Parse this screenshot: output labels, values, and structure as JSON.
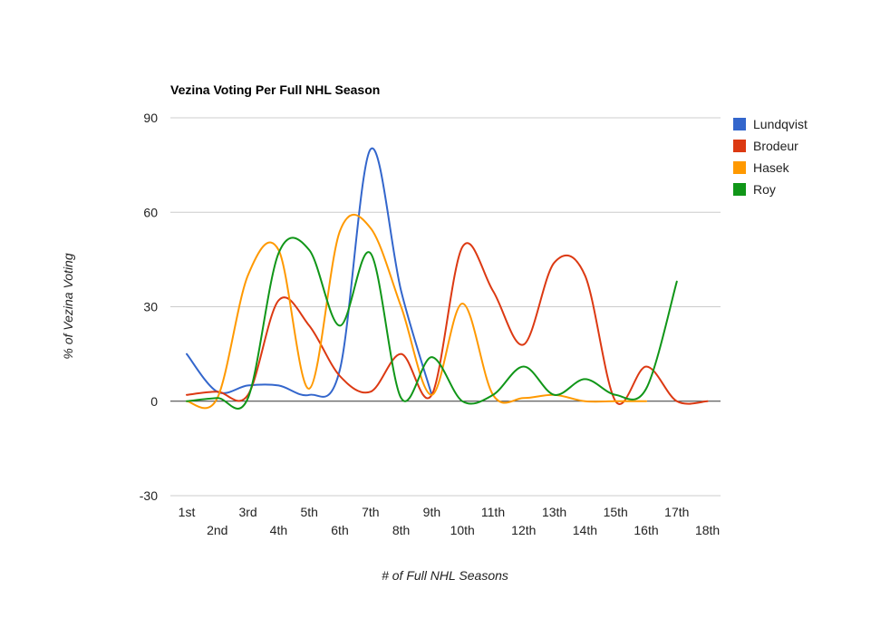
{
  "chart_data": {
    "type": "line",
    "title": "Vezina Voting Per Full NHL Season",
    "xlabel": "# of Full NHL Seasons",
    "ylabel": "% of Vezina Voting",
    "ylim": [
      -30,
      90
    ],
    "yticks": [
      90,
      60,
      30,
      0,
      -30
    ],
    "grid": true,
    "legend_position": "right",
    "categories": [
      "1st",
      "2nd",
      "3rd",
      "4th",
      "5th",
      "6th",
      "7th",
      "8th",
      "9th",
      "10th",
      "11th",
      "12th",
      "13th",
      "14th",
      "15th",
      "16th",
      "17th",
      "18th"
    ],
    "series": [
      {
        "name": "Lundqvist",
        "color": "#3366cc",
        "values": [
          15,
          3,
          5,
          5,
          2,
          10,
          80,
          35,
          2,
          null,
          null,
          null,
          null,
          null,
          null,
          null,
          null,
          null
        ]
      },
      {
        "name": "Brodeur",
        "color": "#dc3912",
        "values": [
          2,
          3,
          2,
          32,
          24,
          8,
          3,
          15,
          2,
          49,
          35,
          18,
          44,
          40,
          0,
          11,
          0,
          0
        ]
      },
      {
        "name": "Hasek",
        "color": "#ff9900",
        "values": [
          0,
          1,
          40,
          48,
          4,
          54,
          55,
          30,
          2,
          31,
          2,
          1,
          2,
          0,
          0,
          0,
          null,
          null
        ]
      },
      {
        "name": "Roy",
        "color": "#109618",
        "values": [
          0,
          1,
          1,
          47,
          48,
          24,
          47,
          1,
          14,
          0,
          2,
          11,
          2,
          7,
          2,
          4,
          38,
          null
        ]
      }
    ]
  }
}
